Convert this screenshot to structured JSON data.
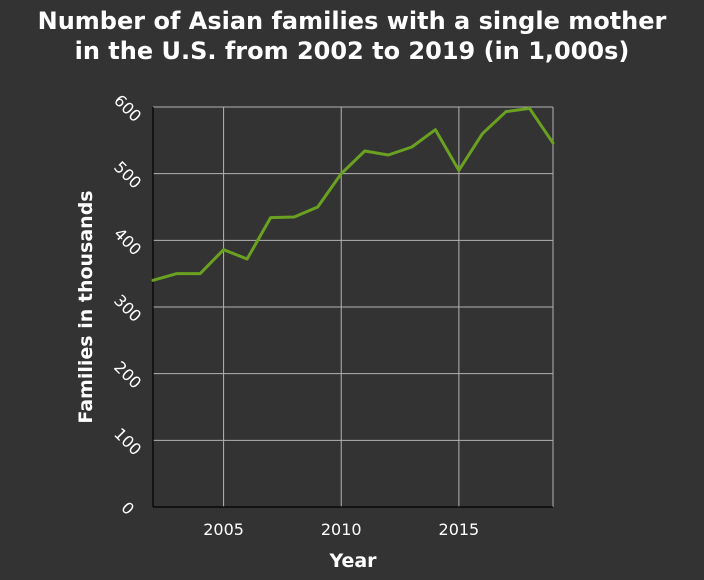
{
  "chart_data": {
    "type": "line",
    "title_line1": "Number of Asian families with a single mother",
    "title_line2": "in the U.S. from 2002 to 2019 (in 1,000s)",
    "xlabel": "Year",
    "ylabel": "Families in thousands",
    "xlim": [
      2002,
      2019
    ],
    "ylim": [
      0,
      600
    ],
    "xticks": [
      2005,
      2010,
      2015
    ],
    "yticks": [
      0,
      100,
      200,
      300,
      400,
      500,
      600
    ],
    "grid": true,
    "line_color": "#6aa121",
    "background_color": "#333333",
    "plot_background_color": "#333333",
    "grid_color": "#b3b3b3",
    "series": [
      {
        "x": [
          2002,
          2003,
          2004,
          2005,
          2006,
          2007,
          2008,
          2009,
          2010,
          2011,
          2012,
          2013,
          2014,
          2015,
          2016,
          2017,
          2018,
          2019
        ],
        "values": [
          340,
          350,
          350,
          386,
          372,
          434,
          435,
          450,
          500,
          534,
          528,
          540,
          566,
          505,
          560,
          593,
          598,
          546
        ]
      }
    ]
  }
}
